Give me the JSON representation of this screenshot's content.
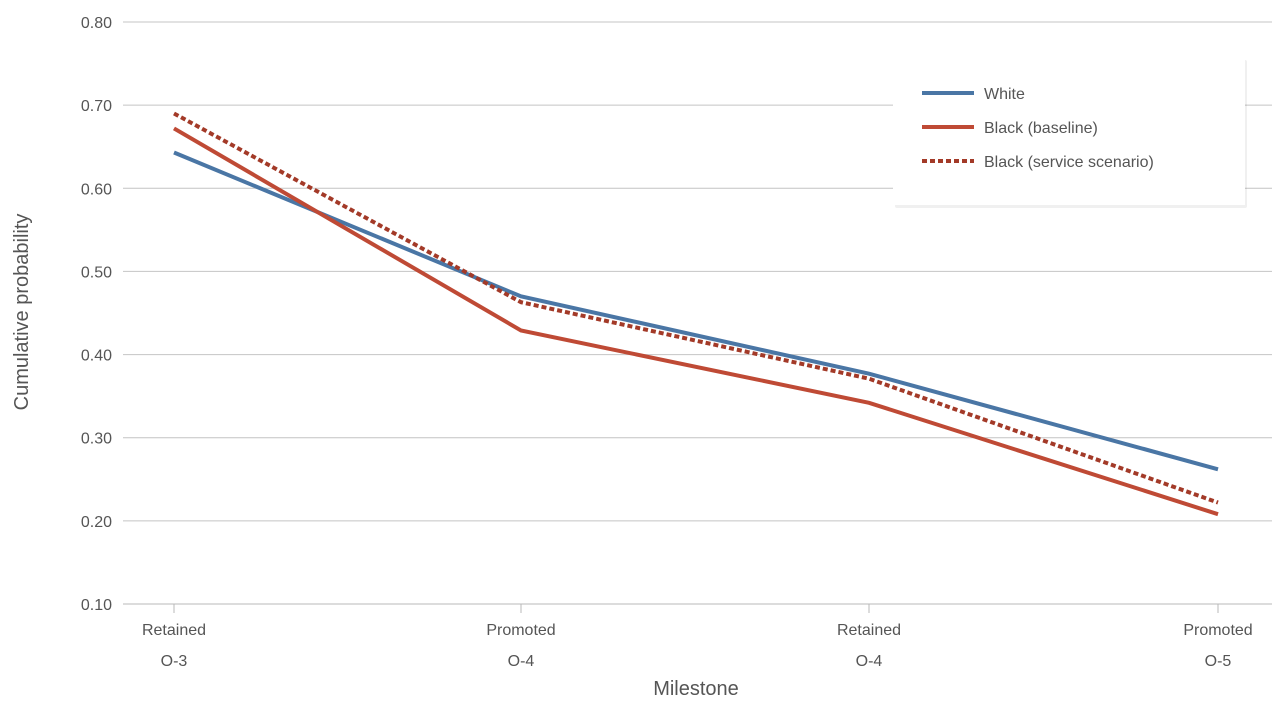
{
  "chart_data": {
    "type": "line",
    "title": "",
    "xlabel": "Milestone",
    "ylabel": "Cumulative probability",
    "categories": [
      [
        "Retained",
        "O-3"
      ],
      [
        "Promoted",
        "O-4"
      ],
      [
        "Retained",
        "O-4"
      ],
      [
        "Promoted",
        "O-5"
      ]
    ],
    "ylim": [
      0.1,
      0.8
    ],
    "yticks": [
      "0.10",
      "0.20",
      "0.30",
      "0.40",
      "0.50",
      "0.60",
      "0.70",
      "0.80"
    ],
    "grid": true,
    "legend_position": "top-right",
    "series": [
      {
        "name": "White",
        "values": [
          0.643,
          0.47,
          0.377,
          0.262
        ],
        "color": "#4a76a5",
        "dash": "solid"
      },
      {
        "name": "Black (baseline)",
        "values": [
          0.672,
          0.429,
          0.342,
          0.208
        ],
        "color": "#bf4a35",
        "dash": "solid"
      },
      {
        "name": "Black (service scenario)",
        "values": [
          0.69,
          0.463,
          0.371,
          0.222
        ],
        "color": "#a33a28",
        "dash": "dotted"
      }
    ]
  }
}
